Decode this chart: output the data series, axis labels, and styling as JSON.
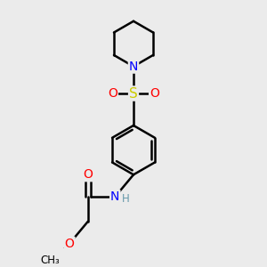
{
  "bg_color": "#ebebeb",
  "bond_color": "#000000",
  "bond_width": 1.8,
  "dbo": 0.045,
  "atom_colors": {
    "N": "#0000ff",
    "O": "#ff0000",
    "S": "#cccc00",
    "H": "#6699aa",
    "C": "#000000"
  },
  "font_size": 10,
  "small_font_size": 8.5
}
